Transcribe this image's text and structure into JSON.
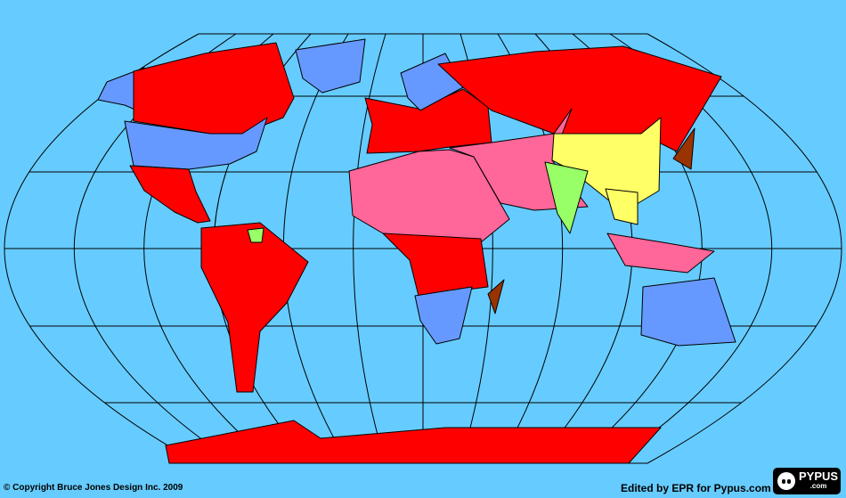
{
  "map": {
    "ocean_color": "#66ccff",
    "projection_shape": "robinson-like graticule",
    "regions": [
      {
        "name": "alaska",
        "color": "#6699ff"
      },
      {
        "name": "canada",
        "color": "#ff0000"
      },
      {
        "name": "usa",
        "color": "#6699ff"
      },
      {
        "name": "greenland",
        "color": "#6699ff"
      },
      {
        "name": "central-america",
        "color": "#ff0000"
      },
      {
        "name": "south-america",
        "color": "#ff0000"
      },
      {
        "name": "guyana",
        "color": "#99ff66"
      },
      {
        "name": "europe",
        "color": "#ff0000"
      },
      {
        "name": "scandinavia",
        "color": "#6699ff"
      },
      {
        "name": "russia",
        "color": "#ff0000"
      },
      {
        "name": "north-africa",
        "color": "#ff6699"
      },
      {
        "name": "central-africa",
        "color": "#ff0000"
      },
      {
        "name": "southern-africa",
        "color": "#6699ff"
      },
      {
        "name": "madagascar",
        "color": "#993300"
      },
      {
        "name": "middle-east-central-asia",
        "color": "#ff6699"
      },
      {
        "name": "china",
        "color": "#ffff66"
      },
      {
        "name": "india",
        "color": "#99ff66"
      },
      {
        "name": "southeast-asia",
        "color": "#ffff66"
      },
      {
        "name": "indonesia",
        "color": "#ff6699"
      },
      {
        "name": "australia",
        "color": "#6699ff"
      },
      {
        "name": "japan",
        "color": "#993300"
      },
      {
        "name": "antarctica",
        "color": "#ff0000"
      }
    ]
  },
  "footer": {
    "copyright": "© Copyright Bruce Jones Design Inc. 2009",
    "edited_by": "Edited by EPR for Pypus.com",
    "logo_text": "PYPUS",
    "logo_sub": ".com"
  }
}
